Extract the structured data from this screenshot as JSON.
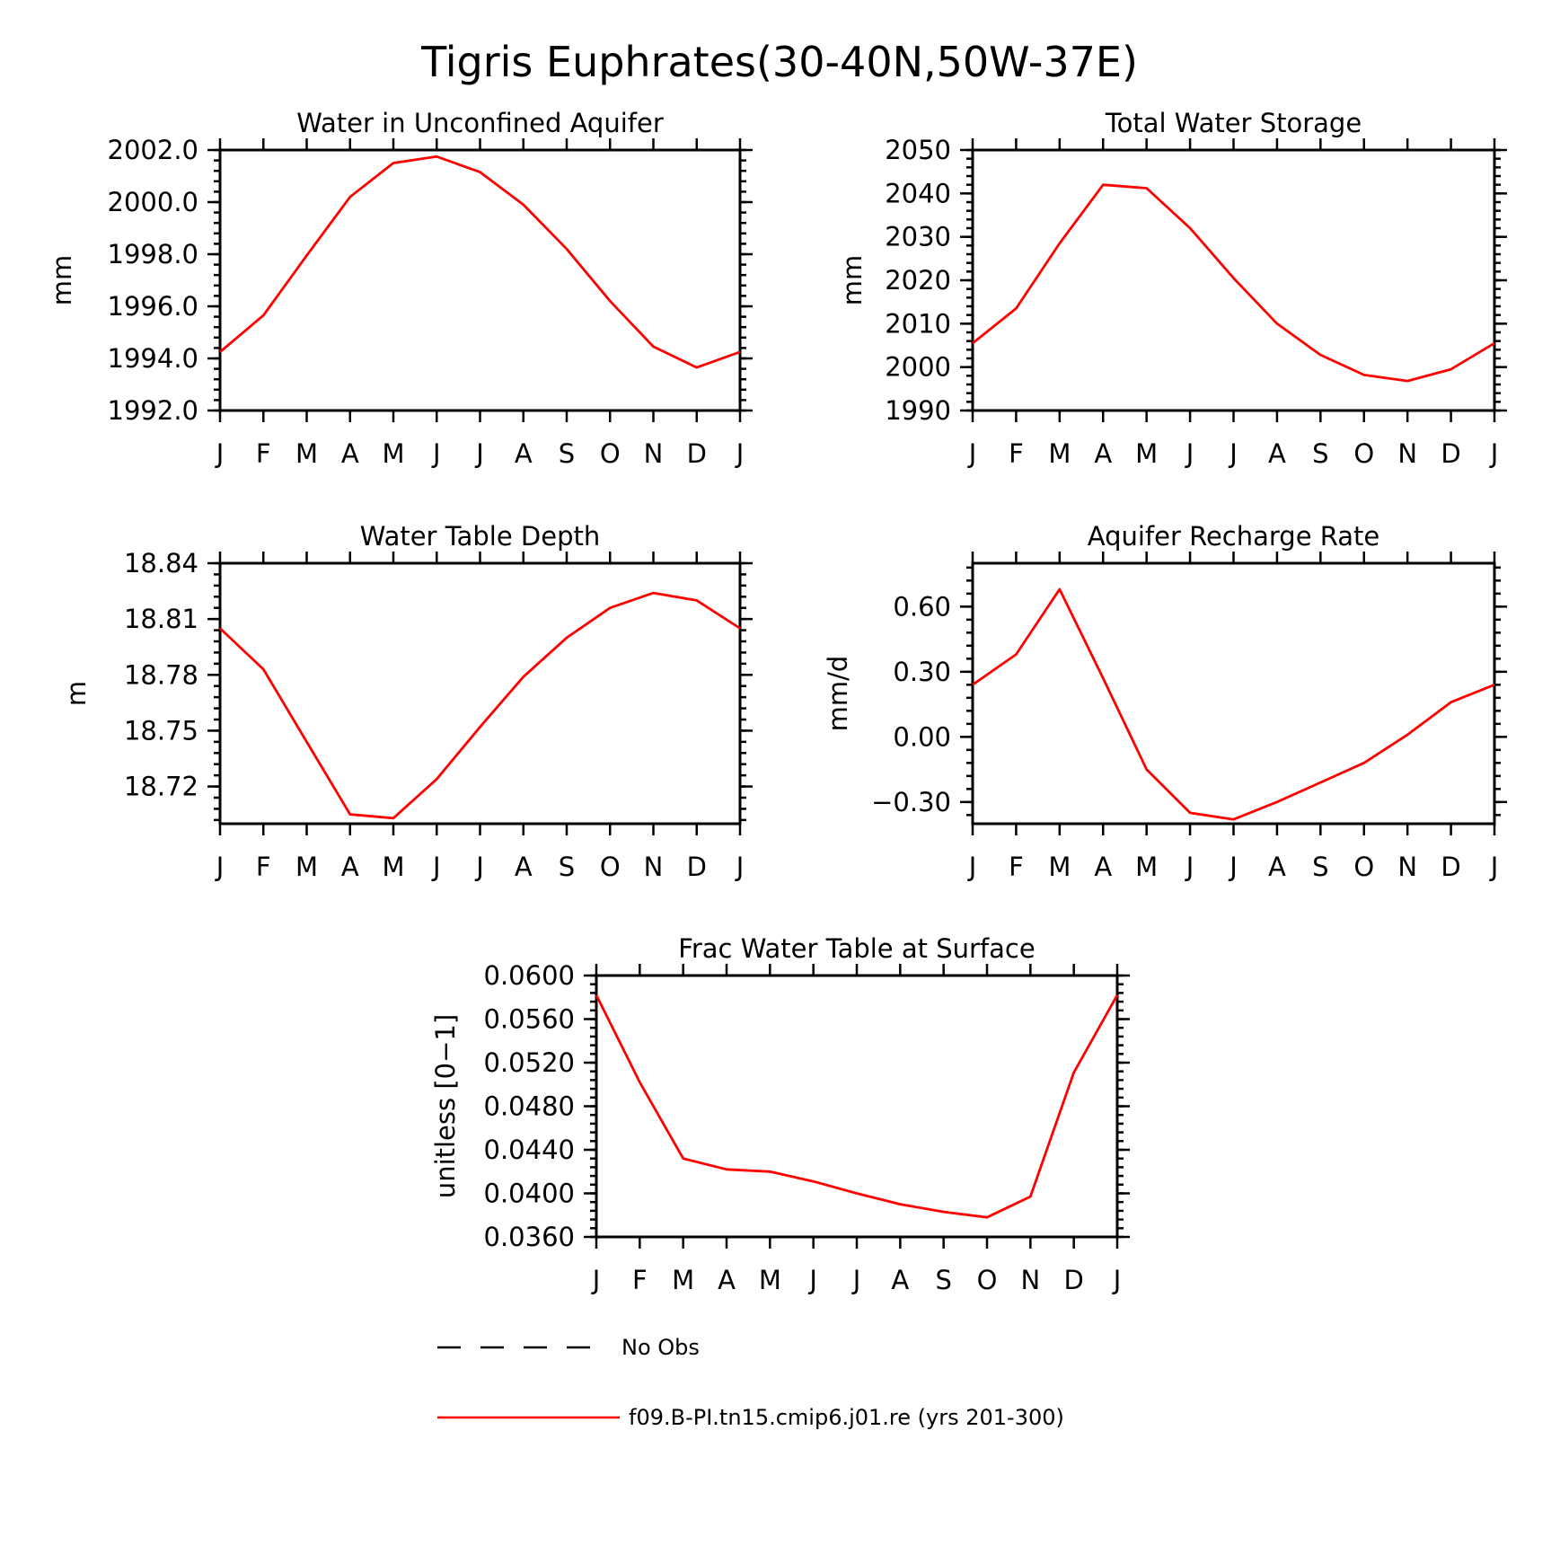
{
  "figure": {
    "title": "Tigris Euphrates(30-40N,50W-37E)"
  },
  "colors": {
    "series": "#ff0000",
    "obs": "#000000"
  },
  "legend": {
    "items": [
      {
        "label": "No Obs",
        "style": "dashed"
      },
      {
        "label": "f09.B-PI.tn15.cmip6.j01.re (yrs 201-300)",
        "style": "solid"
      }
    ]
  },
  "chart_data": [
    {
      "type": "line",
      "title": "Water in Unconfined Aquifer",
      "ylabel": "mm",
      "categories": [
        "J",
        "F",
        "M",
        "A",
        "M",
        "J",
        "J",
        "A",
        "S",
        "O",
        "N",
        "D",
        "J"
      ],
      "ylim": [
        1992.0,
        2002.0
      ],
      "yticks": [
        1992.0,
        1994.0,
        1996.0,
        1998.0,
        2000.0,
        2002.0
      ],
      "ytick_labels": [
        "1992.0",
        "1994.0",
        "1996.0",
        "1998.0",
        "2000.0",
        "2002.0"
      ],
      "minor_step": 0.4,
      "series": [
        {
          "values": [
            1994.25,
            1995.65,
            1997.95,
            2000.2,
            2001.5,
            2001.75,
            2001.15,
            1999.9,
            1998.2,
            1996.2,
            1994.45,
            1993.65,
            1994.25
          ]
        }
      ]
    },
    {
      "type": "line",
      "title": "Total Water Storage",
      "ylabel": "mm",
      "categories": [
        "J",
        "F",
        "M",
        "A",
        "M",
        "J",
        "J",
        "A",
        "S",
        "O",
        "N",
        "D",
        "J"
      ],
      "ylim": [
        1990,
        2050
      ],
      "yticks": [
        1990,
        2000,
        2010,
        2020,
        2030,
        2040,
        2050
      ],
      "ytick_labels": [
        "1990",
        "2000",
        "2010",
        "2020",
        "2030",
        "2040",
        "2050"
      ],
      "minor_step": 2,
      "series": [
        {
          "values": [
            2005.5,
            2013.5,
            2028.5,
            2042.0,
            2041.2,
            2032.0,
            2020.5,
            2010.0,
            2002.8,
            1998.2,
            1996.8,
            1999.5,
            2005.5
          ]
        }
      ]
    },
    {
      "type": "line",
      "title": "Water Table Depth",
      "ylabel": "m",
      "categories": [
        "J",
        "F",
        "M",
        "A",
        "M",
        "J",
        "J",
        "A",
        "S",
        "O",
        "N",
        "D",
        "J"
      ],
      "ylim": [
        18.7,
        18.84
      ],
      "yticks": [
        18.72,
        18.75,
        18.78,
        18.81,
        18.84
      ],
      "ytick_labels": [
        "18.72",
        "18.75",
        "18.78",
        "18.81",
        "18.84"
      ],
      "minor_step": 0.006,
      "series": [
        {
          "values": [
            18.805,
            18.783,
            18.744,
            18.705,
            18.703,
            18.724,
            18.752,
            18.779,
            18.8,
            18.816,
            18.824,
            18.82,
            18.805
          ]
        }
      ]
    },
    {
      "type": "line",
      "title": "Aquifer Recharge Rate",
      "ylabel": "mm/d",
      "categories": [
        "J",
        "F",
        "M",
        "A",
        "M",
        "J",
        "J",
        "A",
        "S",
        "O",
        "N",
        "D",
        "J"
      ],
      "ylim": [
        -0.4,
        0.8
      ],
      "yticks": [
        -0.3,
        0.0,
        0.3,
        0.6
      ],
      "ytick_labels": [
        "−0.30",
        "0.00",
        "0.30",
        "0.60"
      ],
      "minor_step": 0.06,
      "series": [
        {
          "values": [
            0.24,
            0.38,
            0.68,
            0.27,
            -0.15,
            -0.35,
            -0.38,
            -0.3,
            -0.21,
            -0.12,
            0.01,
            0.16,
            0.24
          ]
        }
      ]
    },
    {
      "type": "line",
      "title": "Frac Water Table at Surface",
      "ylabel": "unitless [0−1]",
      "categories": [
        "J",
        "F",
        "M",
        "A",
        "M",
        "J",
        "J",
        "A",
        "S",
        "O",
        "N",
        "D",
        "J"
      ],
      "ylim": [
        0.036,
        0.06
      ],
      "yticks": [
        0.036,
        0.04,
        0.044,
        0.048,
        0.052,
        0.056,
        0.06
      ],
      "ytick_labels": [
        "0.0360",
        "0.0400",
        "0.0440",
        "0.0480",
        "0.0520",
        "0.0560",
        "0.0600"
      ],
      "minor_step": 0.0008,
      "series": [
        {
          "values": [
            0.0582,
            0.0502,
            0.0432,
            0.0422,
            0.042,
            0.0411,
            0.04,
            0.039,
            0.0383,
            0.0378,
            0.0397,
            0.0511,
            0.0582
          ]
        }
      ]
    }
  ]
}
